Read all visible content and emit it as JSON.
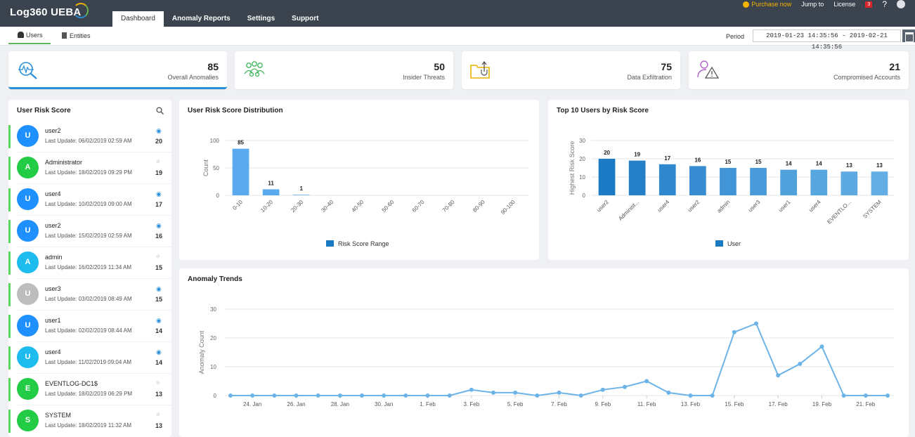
{
  "app": {
    "title": "Log360 UEBA"
  },
  "nav": {
    "tabs": [
      "Dashboard",
      "Anomaly Reports",
      "Settings",
      "Support"
    ]
  },
  "top_right": {
    "purchase": "Purchase now",
    "jump_to": "Jump to",
    "license": "License",
    "notifications": "3",
    "help": "?"
  },
  "subnav": {
    "users": "Users",
    "entities": "Entities",
    "period_label": "Period",
    "period_value": "2019-01-23 14:35:56 - 2019-02-21 14:35:56"
  },
  "cards": [
    {
      "value": "85",
      "label": "Overall Anomalies",
      "icon": "anomaly-search-icon",
      "color": "#2a8fd8"
    },
    {
      "value": "50",
      "label": "Insider Threats",
      "icon": "insider-group-icon",
      "color": "#3fb559"
    },
    {
      "value": "75",
      "label": "Data Exfiltration",
      "icon": "folder-upload-icon",
      "color": "#e8b400"
    },
    {
      "value": "21",
      "label": "Compromised Accounts",
      "icon": "user-warning-icon",
      "color": "#b565c9"
    }
  ],
  "risk_panel": {
    "title": "User Risk Score",
    "rows": [
      {
        "initial": "U",
        "name": "user2",
        "update": "Last Update: 06/02/2019 02:59 AM",
        "score": "20",
        "avatar_color": "#1e90ff",
        "watched": true
      },
      {
        "initial": "A",
        "name": "Administrator",
        "update": "Last Update: 18/02/2019 09:29 PM",
        "score": "19",
        "avatar_color": "#22cc44",
        "watched": false
      },
      {
        "initial": "U",
        "name": "user4",
        "update": "Last Update: 10/02/2019 09:00 AM",
        "score": "17",
        "avatar_color": "#1e90ff",
        "watched": true
      },
      {
        "initial": "U",
        "name": "user2",
        "update": "Last Update: 15/02/2019 02:59 AM",
        "score": "16",
        "avatar_color": "#1e90ff",
        "watched": true
      },
      {
        "initial": "A",
        "name": "admin",
        "update": "Last Update: 16/02/2019 11:34 AM",
        "score": "15",
        "avatar_color": "#1ebbee",
        "watched": false
      },
      {
        "initial": "U",
        "name": "user3",
        "update": "Last Update: 03/02/2019 08:49 AM",
        "score": "15",
        "avatar_color": "#bdbdbd",
        "watched": true
      },
      {
        "initial": "U",
        "name": "user1",
        "update": "Last Update: 02/02/2019 08:44 AM",
        "score": "14",
        "avatar_color": "#1e90ff",
        "watched": true
      },
      {
        "initial": "U",
        "name": "user4",
        "update": "Last Update: 11/02/2019 09:04 AM",
        "score": "14",
        "avatar_color": "#1ebbee",
        "watched": true
      },
      {
        "initial": "E",
        "name": "EVENTLOG-DC1$",
        "update": "Last Update: 18/02/2019 06:29 PM",
        "score": "13",
        "avatar_color": "#22cc44",
        "watched": false
      },
      {
        "initial": "S",
        "name": "SYSTEM",
        "update": "Last Update: 18/02/2019 11:32 AM",
        "score": "13",
        "avatar_color": "#22cc44",
        "watched": false
      }
    ]
  },
  "chart_data": [
    {
      "type": "bar",
      "title": "User Risk Score Distribution",
      "ylabel": "Count",
      "ylim": [
        0,
        100
      ],
      "yticks": [
        "0",
        "50",
        "100"
      ],
      "categories": [
        "0-10",
        "10-20",
        "20-30",
        "30-40",
        "40-50",
        "50-60",
        "60-70",
        "70-80",
        "80-90",
        "90-100"
      ],
      "values": [
        85,
        11,
        1,
        0,
        0,
        0,
        0,
        0,
        0,
        0
      ],
      "labels": [
        "85",
        "11",
        "1"
      ],
      "legend": "Risk Score Range",
      "colors": {
        "bar": "#5aaaee",
        "legend": "#1a7bc4"
      }
    },
    {
      "type": "bar",
      "title": "Top 10 Users by Risk Score",
      "ylabel": "Highest Risk Score",
      "ylim": [
        0,
        30
      ],
      "yticks": [
        "0",
        "10",
        "20",
        "30"
      ],
      "categories": [
        "user2",
        "Administ...",
        "user4",
        "user2",
        "admin",
        "user3",
        "user1",
        "user4",
        "EVENTLO...",
        "SYSTEM"
      ],
      "values": [
        20,
        19,
        17,
        16,
        15,
        15,
        14,
        14,
        13,
        13
      ],
      "labels": [
        "20",
        "19",
        "17",
        "16",
        "15",
        "15",
        "14",
        "14",
        "13",
        "13"
      ],
      "legend": "User",
      "colors": [
        "#1a7bc4",
        "#2580c8",
        "#2f87cd",
        "#388dd2",
        "#4194d6",
        "#489ad9",
        "#50a0dc",
        "#57a6e0",
        "#5daae3",
        "#62aee5"
      ]
    },
    {
      "type": "line",
      "title": "Anomaly Trends",
      "ylabel": "Anomaly Count",
      "ylim": [
        0,
        30
      ],
      "yticks": [
        "0",
        "10",
        "20",
        "30"
      ],
      "x": [
        "23 Jan",
        "24 Jan",
        "25 Jan",
        "26 Jan",
        "27 Jan",
        "28 Jan",
        "29 Jan",
        "30 Jan",
        "31 Jan",
        "1 Feb",
        "2 Feb",
        "3 Feb",
        "4 Feb",
        "5 Feb",
        "6 Feb",
        "7 Feb",
        "8 Feb",
        "9 Feb",
        "10 Feb",
        "11 Feb",
        "12 Feb",
        "13 Feb",
        "14 Feb",
        "15 Feb",
        "16 Feb",
        "17 Feb",
        "18 Feb",
        "19 Feb",
        "20 Feb",
        "21 Feb",
        "22 Feb"
      ],
      "values": [
        0,
        0,
        0,
        0,
        0,
        0,
        0,
        0,
        0,
        0,
        0,
        2,
        1,
        1,
        0,
        1,
        0,
        2,
        3,
        5,
        1,
        0,
        0,
        22,
        25,
        7,
        11,
        17,
        0,
        0,
        0
      ],
      "xtick_labels": [
        "24. Jan",
        "26. Jan",
        "28. Jan",
        "30. Jan",
        "1. Feb",
        "3. Feb",
        "5. Feb",
        "7. Feb",
        "9. Feb",
        "11. Feb",
        "13. Feb",
        "15. Feb",
        "17. Feb",
        "19. Feb",
        "21. Feb"
      ],
      "colors": {
        "line": "#6cb4e8"
      }
    }
  ]
}
